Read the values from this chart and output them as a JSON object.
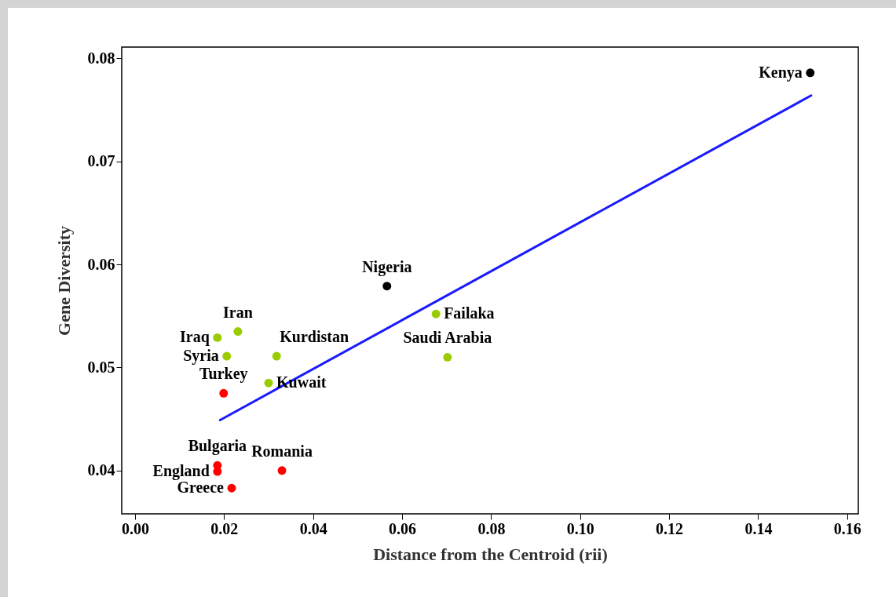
{
  "chart_data": {
    "type": "scatter",
    "xlabel": "Distance from the Centroid (rii)",
    "ylabel": "Gene Diversity",
    "xlim": [
      -0.003,
      0.1625
    ],
    "ylim": [
      0.0358,
      0.0811
    ],
    "xticks": [
      {
        "value": 0,
        "label": "0.00"
      },
      0.02,
      0.04,
      0.06,
      0.08,
      {
        "value": 0.1,
        "label": "0.10"
      },
      0.12,
      0.14,
      0.16
    ],
    "yticks": [
      0.04,
      0.05,
      0.06,
      0.07,
      0.08
    ],
    "grid": false,
    "series": [
      {
        "marker": "circle",
        "color": "#99cc00",
        "x": [
          0.0676,
          0.0702,
          0.0231,
          0.0185,
          0.0206,
          0.0318,
          0.03
        ],
        "values": [
          0.0552,
          0.051,
          0.0535,
          0.0529,
          0.0511,
          0.0511,
          0.0485
        ]
      },
      {
        "marker": "circle",
        "color": "#ff0000",
        "x": [
          0.0199,
          0.0185,
          0.0185,
          0.033,
          0.0217
        ],
        "values": [
          0.0475,
          0.0405,
          0.0399,
          0.04,
          0.0383
        ]
      },
      {
        "marker": "circle",
        "color": "#000000",
        "x": [
          0.1517,
          0.0566
        ],
        "values": [
          0.0786,
          0.0579
        ]
      },
      {
        "type": "line",
        "color": "#1a1aff",
        "x": [
          0.0191,
          0.1519
        ],
        "values": [
          0.0449,
          0.0764
        ]
      }
    ],
    "annotations": [
      {
        "text": "Kenya",
        "x": 0.1517,
        "y": 0.0786
      },
      {
        "text": "Nigeria",
        "x": 0.0566,
        "y": 0.0579
      },
      {
        "text": "Failaka",
        "x": 0.0676,
        "y": 0.0552
      },
      {
        "text": "Saudi Arabia",
        "x": 0.0702,
        "y": 0.051
      },
      {
        "text": "Iran",
        "x": 0.0231,
        "y": 0.0535
      },
      {
        "text": "Iraq",
        "x": 0.0185,
        "y": 0.0529
      },
      {
        "text": "Syria",
        "x": 0.0206,
        "y": 0.0511
      },
      {
        "text": "Kurdistan",
        "x": 0.0318,
        "y": 0.0511
      },
      {
        "text": "Kuwait",
        "x": 0.03,
        "y": 0.0485
      },
      {
        "text": "Turkey",
        "x": 0.0199,
        "y": 0.0475
      },
      {
        "text": "Bulgaria",
        "x": 0.0185,
        "y": 0.0405
      },
      {
        "text": "England",
        "x": 0.0185,
        "y": 0.0399
      },
      {
        "text": "Romania",
        "x": 0.033,
        "y": 0.04
      },
      {
        "text": "Greece",
        "x": 0.0217,
        "y": 0.0383
      }
    ]
  }
}
